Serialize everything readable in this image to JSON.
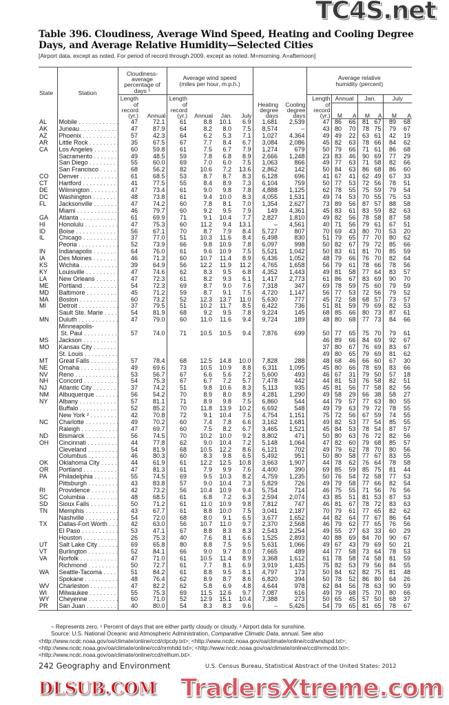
{
  "title": "Table 396. Cloudiness, Average Wind Speed, Heating and Cooling Degree Days, and Average Relative Humidity—Selected Cities",
  "subtitle": "[Airport data, except as noted. For period of record through 2009, except as noted. M=morning. A=afternoon]",
  "headers": {
    "state": "State",
    "station": "Station",
    "cloudiness": "Cloudiness-average percentage of days ¹",
    "wind": "Average wind speed (miles per hour, m.p.h.)",
    "humidity": "Average relative humidity (percent)",
    "length_of_record": "Length of record (yr.)",
    "annual": "Annual",
    "jan": "Jan.",
    "july": "July",
    "heating": "Heating degree days",
    "cooling": "Cooling degree days",
    "m": "M",
    "a": "A"
  },
  "rows": [
    [
      "AL",
      "Mobile",
      "47",
      "72.1",
      "61",
      "8.8",
      "10.1",
      "6.9",
      "1,681",
      "2,539",
      "47",
      "86",
      "66",
      "81",
      "67",
      "89",
      "68"
    ],
    [
      "AK",
      "Juneau",
      "47",
      "87.9",
      "64",
      "8.2",
      "8.0",
      "7.5",
      "8,574",
      "–",
      "43",
      "80",
      "70",
      "78",
      "75",
      "79",
      "67"
    ],
    [
      "AZ",
      "Phoenix",
      "57",
      "42.3",
      "64",
      "6.2",
      "5.3",
      "7.1",
      "1,027",
      "4,364",
      "49",
      "49",
      "22",
      "63",
      "61",
      "42",
      "19"
    ],
    [
      "AR",
      "Little Rock",
      "35",
      "67.5",
      "67",
      "7.7",
      "8.4",
      "6.7",
      "3,084",
      "2,086",
      "45",
      "82",
      "63",
      "78",
      "66",
      "84",
      "62"
    ],
    [
      "CA",
      "Los Angeles",
      "60",
      "59.8",
      "61",
      "7.5",
      "6.7",
      "7.9",
      "1,274",
      "679",
      "50",
      "79",
      "66",
      "71",
      "61",
      "86",
      "68"
    ],
    [
      "",
      "Sacramento",
      "49",
      "48.5",
      "59",
      "7.8",
      "6.8",
      "8.9",
      "2,666",
      "1,248",
      "23",
      "83",
      "46",
      "90",
      "69",
      "77",
      "29"
    ],
    [
      "",
      "San Diego",
      "55",
      "60.0",
      "69",
      "7.0",
      "6.0",
      "7.5",
      "1,063",
      "866",
      "49",
      "77",
      "63",
      "71",
      "58",
      "82",
      "66"
    ],
    [
      "",
      "San Francisco",
      "68",
      "56.2",
      "82",
      "10.6",
      "7.2",
      "13.6",
      "2,862",
      "142",
      "50",
      "84",
      "63",
      "86",
      "68",
      "86",
      "60"
    ],
    [
      "CO",
      "Denver",
      "61",
      "68.5",
      "53",
      "8.7",
      "8.7",
      "8.3",
      "6,128",
      "696",
      "41",
      "67",
      "41",
      "62",
      "49",
      "67",
      "33"
    ],
    [
      "CT",
      "Hartford",
      "41",
      "77.5",
      "55",
      "8.4",
      "8.9",
      "7.3",
      "6,104",
      "759",
      "50",
      "77",
      "53",
      "72",
      "56",
      "78",
      "51"
    ],
    [
      "DE",
      "Wilmington",
      "47",
      "73.4",
      "61",
      "9.0",
      "9.8",
      "7.8",
      "4,888",
      "1,125",
      "62",
      "78",
      "55",
      "75",
      "59",
      "79",
      "54"
    ],
    [
      "DC",
      "Washington",
      "48",
      "73.8",
      "61",
      "9.4",
      "10.0",
      "8.3",
      "4,055",
      "1,531",
      "49",
      "74",
      "53",
      "70",
      "55",
      "75",
      "53"
    ],
    [
      "FL",
      "Jacksonville",
      "47",
      "74.2",
      "60",
      "7.8",
      "8.1",
      "7.0",
      "1,354",
      "2,627",
      "73",
      "89",
      "56",
      "87",
      "57",
      "88",
      "58"
    ],
    [
      "",
      "Miami",
      "46",
      "79.7",
      "60",
      "9.2",
      "9.5",
      "7.9",
      "149",
      "4,361",
      "45",
      "83",
      "61",
      "83",
      "59",
      "82",
      "63"
    ],
    [
      "GA",
      "Atlanta",
      "61",
      "69.9",
      "71",
      "9.1",
      "10.4",
      "7.7",
      "2,827",
      "1,810",
      "49",
      "82",
      "56",
      "78",
      "58",
      "87",
      "58"
    ],
    [
      "HI",
      "Honolulu",
      "47",
      "75.3",
      "60",
      "11.2",
      "9.4",
      "13.1",
      "–",
      "4,561",
      "40",
      "71",
      "56",
      "79",
      "61",
      "67",
      "51"
    ],
    [
      "ID",
      "Boise",
      "56",
      "67.1",
      "70",
      "8.7",
      "7.9",
      "8.4",
      "5,727",
      "807",
      "70",
      "69",
      "43",
      "80",
      "70",
      "53",
      "20"
    ],
    [
      "IL",
      "Chicago",
      "37",
      "77.0",
      "51",
      "10.3",
      "11.6",
      "8.4",
      "6,498",
      "830",
      "51",
      "79",
      "65",
      "77",
      "70",
      "80",
      "62"
    ],
    [
      "",
      "Peoria",
      "52",
      "73.9",
      "66",
      "9.8",
      "10.9",
      "7.8",
      "6,097",
      "998",
      "50",
      "82",
      "67",
      "79",
      "72",
      "85",
      "66"
    ],
    [
      "IN",
      "Indianapolis",
      "64",
      "76.0",
      "61",
      "9.6",
      "10.9",
      "7.5",
      "5,521",
      "1,042",
      "50",
      "83",
      "61",
      "81",
      "70",
      "85",
      "59"
    ],
    [
      "IA",
      "Des Moines",
      "46",
      "71.3",
      "60",
      "10.7",
      "11.4",
      "8.9",
      "6,436",
      "1,052",
      "48",
      "79",
      "66",
      "76",
      "70",
      "82",
      "64"
    ],
    [
      "KS",
      "Wichita",
      "39",
      "64.9",
      "56",
      "12.2",
      "11.9",
      "11.2",
      "4,765",
      "1,658",
      "56",
      "79",
      "61",
      "78",
      "66",
      "78",
      "56"
    ],
    [
      "KY",
      "Louisville",
      "47",
      "74.6",
      "62",
      "8.3",
      "9.5",
      "6.8",
      "4,352",
      "1,443",
      "49",
      "81",
      "58",
      "77",
      "64",
      "83",
      "57"
    ],
    [
      "LA",
      "New Orleans",
      "47",
      "72.3",
      "61",
      "8.2",
      "9.3",
      "6.1",
      "1,417",
      "2,773",
      "61",
      "86",
      "67",
      "83",
      "69",
      "90",
      "70"
    ],
    [
      "ME",
      "Portland",
      "54",
      "72.3",
      "69",
      "8.7",
      "9.0",
      "7.6",
      "7,318",
      "347",
      "69",
      "78",
      "59",
      "75",
      "60",
      "79",
      "59"
    ],
    [
      "MD",
      "Baltimore",
      "45",
      "71.2",
      "59",
      "8.7",
      "9.1",
      "7.5",
      "4,720",
      "1,147",
      "56",
      "77",
      "53",
      "72",
      "56",
      "79",
      "52"
    ],
    [
      "MA",
      "Boston",
      "60",
      "73.2",
      "52",
      "12.3",
      "13.7",
      "11.0",
      "5,630",
      "777",
      "45",
      "72",
      "58",
      "68",
      "57",
      "73",
      "57"
    ],
    [
      "MI",
      "Detroit",
      "37",
      "79.5",
      "51",
      "10.2",
      "11.7",
      "8.5",
      "6,422",
      "736",
      "51",
      "81",
      "59",
      "79",
      "69",
      "82",
      "53"
    ],
    [
      "",
      "Sault Ste. Marie",
      "54",
      "81.9",
      "68",
      "9.2",
      "9.5",
      "7.8",
      "9,224",
      "145",
      "68",
      "85",
      "66",
      "80",
      "73",
      "87",
      "61"
    ],
    [
      "MN",
      "Duluth",
      "47",
      "79.0",
      "60",
      "11.0",
      "11.6",
      "9.4",
      "9,724",
      "189",
      "48",
      "80",
      "68",
      "77",
      "73",
      "84",
      "66"
    ],
    [
      "",
      "Minneapolis-\n St. Paul",
      "57",
      "74.0",
      "71",
      "10.5",
      "10.5",
      "9.4",
      "7,876",
      "699",
      "50",
      "77",
      "65",
      "75",
      "70",
      "79",
      "61"
    ],
    [
      "MS",
      "Jackson",
      "",
      "",
      "",
      "",
      "",
      "",
      "",
      "",
      "46",
      "89",
      "66",
      "84",
      "69",
      "92",
      "67"
    ],
    [
      "MO",
      "Kansas City",
      "",
      "",
      "",
      "",
      "",
      "",
      "",
      "",
      "37",
      "80",
      "67",
      "76",
      "69",
      "83",
      "67"
    ],
    [
      "",
      "St. Louis",
      "",
      "",
      "",
      "",
      "",
      "",
      "",
      "",
      "49",
      "80",
      "65",
      "79",
      "69",
      "81",
      "62"
    ],
    [
      "MT",
      "Great Falls",
      "57",
      "78.4",
      "68",
      "12.5",
      "14.8",
      "10.0",
      "7,828",
      "288",
      "48",
      "68",
      "46",
      "66",
      "60",
      "67",
      "30"
    ],
    [
      "NE",
      "Omaha",
      "49",
      "69.6",
      "73",
      "10.5",
      "10.9",
      "8.8",
      "6,311",
      "1,095",
      "45",
      "80",
      "66",
      "78",
      "69",
      "83",
      "66"
    ],
    [
      "NV",
      "Reno",
      "53",
      "56.7",
      "67",
      "6.6",
      "5.6",
      "7.2",
      "5,600",
      "493",
      "46",
      "67",
      "31",
      "79",
      "50",
      "57",
      "18"
    ],
    [
      "NH",
      "Concord",
      "54",
      "75.3",
      "67",
      "6.7",
      "7.2",
      "5.7",
      "7,478",
      "442",
      "44",
      "81",
      "53",
      "76",
      "58",
      "82",
      "51"
    ],
    [
      "NJ",
      "Atlantic City",
      "37",
      "74.2",
      "51",
      "9.8",
      "10.6",
      "8.3",
      "5,113",
      "935",
      "45",
      "81",
      "56",
      "77",
      "58",
      "82",
      "56"
    ],
    [
      "NM",
      "Albuquerque",
      "56",
      "54.2",
      "70",
      "8.9",
      "8.0",
      "8.9",
      "4,281",
      "1,290",
      "49",
      "58",
      "29",
      "66",
      "38",
      "58",
      "27"
    ],
    [
      "NY",
      "Albany",
      "57",
      "81.1",
      "71",
      "8.9",
      "9.8",
      "7.5",
      "6,860",
      "544",
      "44",
      "79",
      "57",
      "77",
      "63",
      "80",
      "55"
    ],
    [
      "",
      "Buffalo",
      "52",
      "85.2",
      "70",
      "11.8",
      "13.9",
      "10.2",
      "6,692",
      "548",
      "49",
      "79",
      "63",
      "79",
      "72",
      "78",
      "55"
    ],
    [
      "",
      "New York ²",
      "42",
      "70.8",
      "72",
      "9.1",
      "10.4",
      "7.5",
      "4,754",
      "1,151",
      "75",
      "72",
      "56",
      "67",
      "59",
      "74",
      "55"
    ],
    [
      "NC",
      "Charlotte",
      "49",
      "70.2",
      "60",
      "7.4",
      "7.8",
      "6.6",
      "3,162",
      "1,681",
      "49",
      "82",
      "53",
      "77",
      "54",
      "85",
      "55"
    ],
    [
      "",
      "Raleigh",
      "47",
      "69.7",
      "60",
      "7.5",
      "8.2",
      "6.7",
      "3,465",
      "1,521",
      "45",
      "84",
      "53",
      "78",
      "54",
      "87",
      "57"
    ],
    [
      "ND",
      "Bismarck",
      "56",
      "74.5",
      "70",
      "10.2",
      "10.0",
      "9.2",
      "8,802",
      "471",
      "50",
      "80",
      "63",
      "76",
      "72",
      "82",
      "56"
    ],
    [
      "OH",
      "Cincinnati",
      "44",
      "77.8",
      "62",
      "9.0",
      "10.4",
      "7.2",
      "5,148",
      "1,064",
      "47",
      "82",
      "60",
      "79",
      "68",
      "85",
      "57"
    ],
    [
      "",
      "Cleveland",
      "54",
      "81.9",
      "68",
      "10.5",
      "12.2",
      "8.6",
      "6,121",
      "702",
      "49",
      "79",
      "62",
      "78",
      "70",
      "80",
      "56"
    ],
    [
      "",
      "Columbus",
      "46",
      "80.3",
      "60",
      "8.3",
      "9.8",
      "6.5",
      "5,492",
      "951",
      "50",
      "80",
      "58",
      "77",
      "67",
      "83",
      "55"
    ],
    [
      "OK",
      "Oklahoma City",
      "44",
      "61.9",
      "61",
      "12.2",
      "12.5",
      "10.8",
      "3,663",
      "1,907",
      "44",
      "78",
      "62",
      "76",
      "64",
      "78",
      "58"
    ],
    [
      "OR",
      "Portland",
      "47",
      "81.3",
      "61",
      "7.9",
      "9.9",
      "7.6",
      "4,400",
      "390",
      "69",
      "85",
      "59",
      "85",
      "75",
      "81",
      "44"
    ],
    [
      "PA",
      "Philadelphia",
      "55",
      "74.5",
      "69",
      "9.5",
      "10.3",
      "8.2",
      "4,759",
      "1,235",
      "50",
      "76",
      "54",
      "72",
      "58",
      "77",
      "53"
    ],
    [
      "",
      "Pittsburgh",
      "43",
      "83.8",
      "57",
      "9.0",
      "10.4",
      "7.3",
      "5,829",
      "726",
      "49",
      "79",
      "58",
      "77",
      "66",
      "82",
      "54"
    ],
    [
      "RI",
      "Providence",
      "42",
      "73.2",
      "56",
      "10.4",
      "10.9",
      "9.4",
      "5,754",
      "714",
      "46",
      "75",
      "55",
      "71",
      "56",
      "76",
      "56"
    ],
    [
      "SC",
      "Columbia",
      "48",
      "68.5",
      "61",
      "6.8",
      "7.2",
      "6.3",
      "2,594",
      "2,074",
      "43",
      "85",
      "51",
      "81",
      "53",
      "87",
      "53"
    ],
    [
      "SD",
      "Sioux Falls",
      "50",
      "71.2",
      "61",
      "11.0",
      "10.9",
      "9.8",
      "7,812",
      "747",
      "46",
      "81",
      "67",
      "78",
      "72",
      "83",
      "63"
    ],
    [
      "TN",
      "Memphis",
      "43",
      "67.7",
      "61",
      "8.8",
      "10.0",
      "7.5",
      "3,041",
      "2,187",
      "70",
      "79",
      "61",
      "77",
      "65",
      "82",
      "62"
    ],
    [
      "",
      "Nashville",
      "54",
      "72.0",
      "68",
      "8.0",
      "9.1",
      "6.5",
      "3,677",
      "1,652",
      "44",
      "82",
      "64",
      "77",
      "67",
      "86",
      "64"
    ],
    [
      "TX",
      "Dallas-Fort Worth",
      "42",
      "63.0",
      "56",
      "10.7",
      "11.0",
      "9.7",
      "2,370",
      "2,568",
      "46",
      "79",
      "62",
      "77",
      "65",
      "76",
      "56"
    ],
    [
      "",
      "El Paso",
      "53",
      "47.1",
      "67",
      "8.8",
      "8.3",
      "8.3",
      "2,543",
      "2,254",
      "49",
      "55",
      "27",
      "63",
      "33",
      "60",
      "29"
    ],
    [
      "",
      "Houston",
      "26",
      "75.3",
      "40",
      "7.6",
      "8.1",
      "6.6",
      "1,525",
      "2,893",
      "40",
      "88",
      "69",
      "84",
      "70",
      "90",
      "67"
    ],
    [
      "UT",
      "Salt Lake City",
      "69",
      "65.8",
      "80",
      "8.8",
      "7.5",
      "9.5",
      "5,631",
      "1,066",
      "49",
      "67",
      "43",
      "79",
      "69",
      "50",
      "21"
    ],
    [
      "VT",
      "Burlington",
      "52",
      "84.1",
      "66",
      "9.0",
      "9.7",
      "8.0",
      "7,665",
      "489",
      "44",
      "77",
      "58",
      "73",
      "64",
      "78",
      "53"
    ],
    [
      "VA",
      "Norfolk",
      "47",
      "71.0",
      "61",
      "10.5",
      "11.4",
      "8.9",
      "3,368",
      "1,612",
      "61",
      "78",
      "58",
      "74",
      "58",
      "81",
      "59"
    ],
    [
      "",
      "Richmond",
      "50",
      "72.7",
      "61",
      "7.7",
      "8.1",
      "6.9",
      "3,919",
      "1,435",
      "75",
      "82",
      "53",
      "79",
      "56",
      "84",
      "55"
    ],
    [
      "WA",
      "Seattle-Tacoma",
      "51",
      "84.2",
      "61",
      "8.8",
      "9.5",
      "8.1",
      "4,797",
      "173",
      "50",
      "84",
      "62",
      "82",
      "75",
      "81",
      "48"
    ],
    [
      "",
      "Spokane",
      "48",
      "76.4",
      "62",
      "8.9",
      "8.7",
      "8.6",
      "6,820",
      "394",
      "50",
      "78",
      "52",
      "86",
      "80",
      "64",
      "26"
    ],
    [
      "WV",
      "Charleston",
      "47",
      "82.2",
      "62",
      "5.8",
      "6.9",
      "4.8",
      "4,644",
      "978",
      "62",
      "84",
      "56",
      "78",
      "63",
      "90",
      "59"
    ],
    [
      "WI",
      "Milwaukee",
      "55",
      "75.3",
      "69",
      "11.5",
      "12.6",
      "9.7",
      "7,087",
      "616",
      "49",
      "79",
      "68",
      "75",
      "70",
      "80",
      "66"
    ],
    [
      "WY",
      "Cheyenne",
      "60",
      "71.0",
      "52",
      "12.9",
      "15.1",
      "10.4",
      "7,388",
      "273",
      "50",
      "65",
      "45",
      "57",
      "50",
      "68",
      "37"
    ],
    [
      "PR",
      "San Juan",
      "40",
      "80.0",
      "54",
      "8.3",
      "8.3",
      "9.6",
      "–",
      "5,426",
      "54",
      "79",
      "65",
      "81",
      "65",
      "78",
      "67"
    ]
  ],
  "notes": {
    "symbols": "– Represents zero. ¹ Percent of days that are either  partly cloudy or cloudy. ² Airport data for sunshine.",
    "source_prefix": "Source: U.S. National Oceanic and Atmospheric Administration, ",
    "source_title": "Comparative Climatic Data",
    "source_suffix": ", annual. See also",
    "links": "<http://www.ncdc.noaa.gov/oa/climate/online/ccd/clpcdy.txt>; <http://www.ncdc.noaa.gov/oa/climate/online/ccd/wndspd.txt>; <http://www.ncdc.noaa.gov/oa/climate/online/ccd/nrmhdd.txt>; <http://www.ncdc.noaa.gov/oa/climate/online/ccd/nrmcdd.txt>; <http://www.ncdc.noaa.gov/oa/climate/online/ccd/relhum.txt>."
  },
  "page_footer": "242  Geography and Environment",
  "credit": "U.S. Census Bureau, Statistical Abstract of the United States: 2012",
  "watermarks": {
    "top": "TC4S.net",
    "middle": "DLSUB.COM",
    "bottom": "TradersXtreme.com"
  }
}
